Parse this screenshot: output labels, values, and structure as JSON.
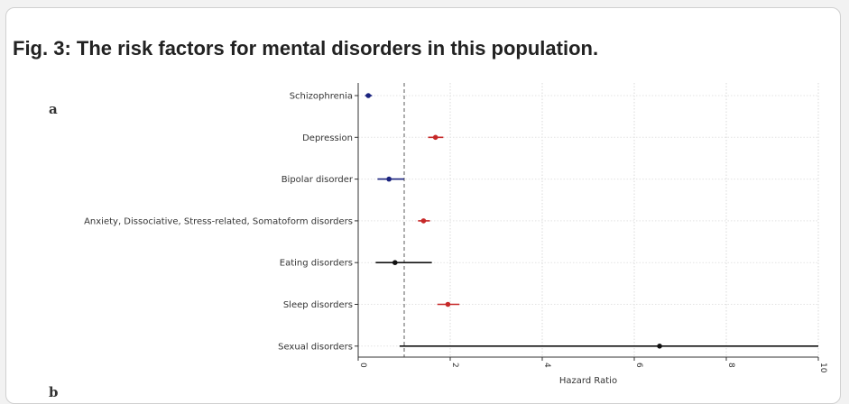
{
  "figure": {
    "title": "Fig. 3: The risk factors for mental disorders in this population.",
    "panel_a": "a",
    "panel_b": "b"
  },
  "chart_data": {
    "type": "forest",
    "xlabel": "Hazard Ratio",
    "xlim": [
      0,
      10
    ],
    "xticks": [
      0,
      2,
      4,
      6,
      8,
      10
    ],
    "reference_line": 1,
    "grid": true,
    "colors": {
      "lower_risk": "#1a237e",
      "higher_risk": "#c62828",
      "not_significant": "#111111"
    },
    "rows": [
      {
        "label": "Schizophrenia",
        "hr": 0.22,
        "lo": 0.15,
        "hi": 0.3,
        "color": "#1a237e"
      },
      {
        "label": "Depression",
        "hr": 1.68,
        "lo": 1.52,
        "hi": 1.85,
        "color": "#c62828"
      },
      {
        "label": "Bipolar disorder",
        "hr": 0.67,
        "lo": 0.42,
        "hi": 1.0,
        "color": "#1a237e"
      },
      {
        "label": "Anxiety, Dissociative, Stress-related, Somatoform disorders",
        "hr": 1.42,
        "lo": 1.3,
        "hi": 1.56,
        "color": "#c62828"
      },
      {
        "label": "Eating disorders",
        "hr": 0.8,
        "lo": 0.38,
        "hi": 1.6,
        "color": "#111111"
      },
      {
        "label": "Sleep disorders",
        "hr": 1.95,
        "lo": 1.72,
        "hi": 2.2,
        "color": "#c62828"
      },
      {
        "label": "Sexual disorders",
        "hr": 6.55,
        "lo": 0.9,
        "hi": 10,
        "color": "#111111"
      }
    ]
  }
}
